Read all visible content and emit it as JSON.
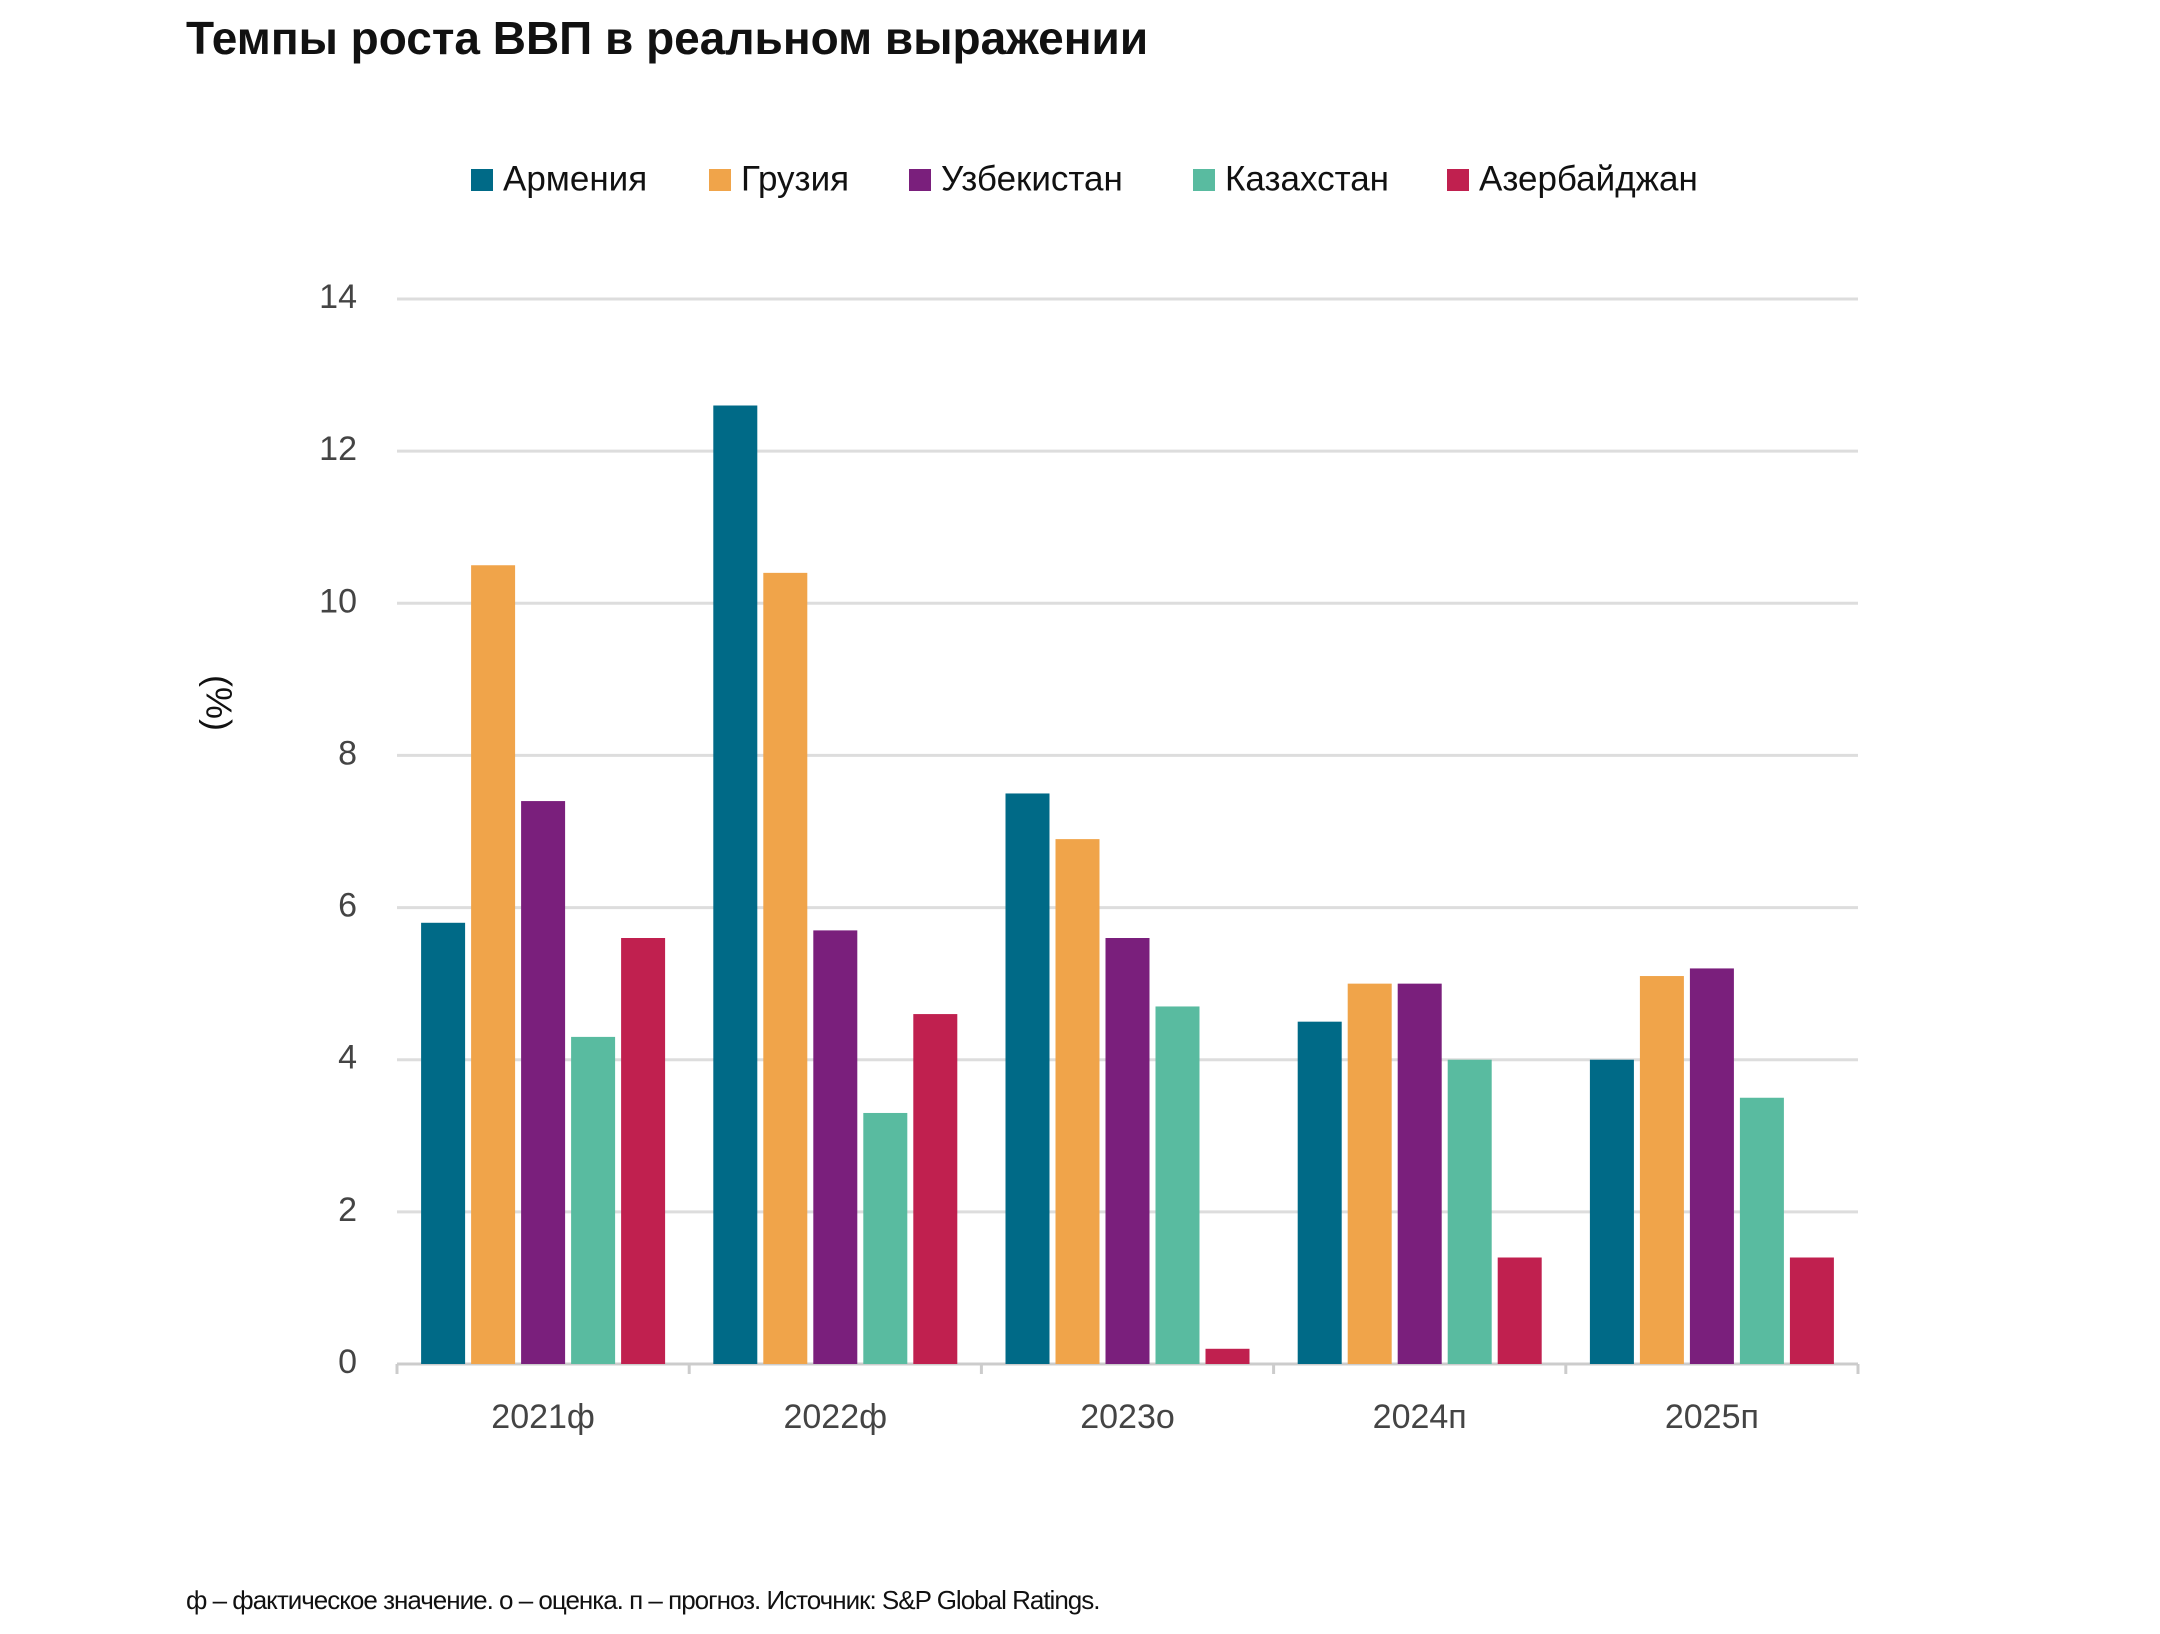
{
  "chart_data": {
    "type": "bar",
    "title": "Темпы роста ВВП в реальном выражении",
    "y_label": "(%)",
    "footnote": "ф – фактическое значение. о – оценка. п – прогноз. Источник: S&P Global Ratings.",
    "categories": [
      "2021ф",
      "2022ф",
      "2023о",
      "2024п",
      "2025п"
    ],
    "series": [
      {
        "name": "Армения",
        "color": "#006a87",
        "values": [
          5.8,
          12.6,
          7.5,
          4.5,
          4.0
        ]
      },
      {
        "name": "Грузия",
        "color": "#f0a44a",
        "values": [
          10.5,
          10.4,
          6.9,
          5.0,
          5.1
        ]
      },
      {
        "name": "Узбекистан",
        "color": "#7a1f7c",
        "values": [
          7.4,
          5.7,
          5.6,
          5.0,
          5.2
        ]
      },
      {
        "name": "Казахстан",
        "color": "#59bba0",
        "values": [
          4.3,
          3.3,
          4.7,
          4.0,
          3.5
        ]
      },
      {
        "name": "Азербайджан",
        "color": "#c0204f",
        "values": [
          5.6,
          4.6,
          0.2,
          1.4,
          1.4
        ]
      }
    ],
    "ylim": [
      0,
      14
    ],
    "yticks": [
      0,
      2,
      4,
      6,
      8,
      10,
      12,
      14
    ],
    "grid": true,
    "legend": "top"
  }
}
